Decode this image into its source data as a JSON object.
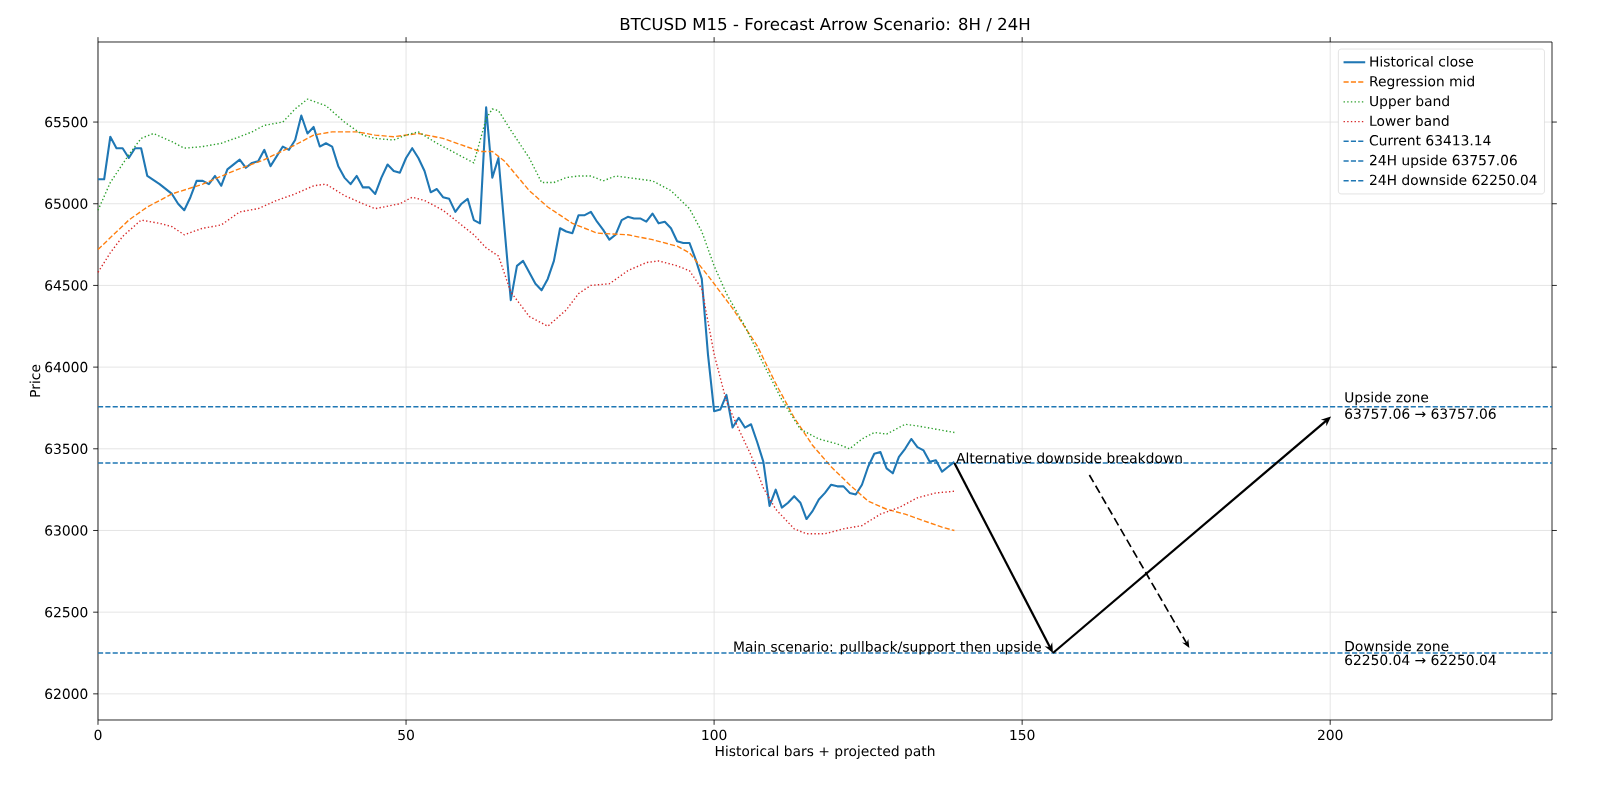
{
  "chart_data": {
    "type": "line",
    "title": "BTCUSD M15 - Forecast Arrow Scenario: 8H / 24H",
    "xlabel": "Historical bars + projected path",
    "ylabel": "Price",
    "xlim": [
      0,
      236
    ],
    "ylim": [
      61840,
      65990
    ],
    "xticks": [
      0,
      50,
      100,
      150,
      200
    ],
    "yticks": [
      62000,
      62500,
      63000,
      63500,
      64000,
      64500,
      65000,
      65500
    ],
    "grid": true,
    "legend": "top right",
    "series": [
      {
        "name": "Historical close",
        "color": "#1f77b4",
        "line_style": "solid",
        "x": [
          0,
          1,
          2,
          3,
          4,
          5,
          6,
          7,
          8,
          10,
          12,
          13,
          14,
          15,
          16,
          17,
          18,
          19,
          20,
          21,
          23,
          24,
          25,
          26,
          27,
          28,
          30,
          31,
          32,
          33,
          34,
          35,
          36,
          37,
          38,
          39,
          40,
          41,
          42,
          43,
          44,
          45,
          46,
          47,
          48,
          49,
          50,
          51,
          52,
          53,
          54,
          55,
          56,
          57,
          58,
          59,
          60,
          61,
          62,
          63,
          64,
          65,
          66,
          67,
          68,
          69,
          71,
          72,
          73,
          74,
          75,
          76,
          77,
          78,
          79,
          80,
          81,
          82,
          83,
          84,
          85,
          86,
          87,
          88,
          89,
          90,
          91,
          92,
          93,
          94,
          95,
          96,
          97,
          98,
          99,
          100,
          101,
          102,
          103,
          104,
          105,
          106,
          107,
          108,
          109,
          110,
          111,
          112,
          113,
          114,
          115,
          116,
          117,
          118,
          119,
          120,
          121,
          122,
          123,
          124,
          125,
          126,
          127,
          128,
          129,
          130,
          131,
          132,
          133,
          134,
          135,
          136,
          137,
          138,
          139
        ],
        "values": [
          65150,
          65150,
          65410,
          65340,
          65340,
          65280,
          65340,
          65340,
          65170,
          65120,
          65060,
          65000,
          64960,
          65040,
          65140,
          65140,
          65120,
          65170,
          65110,
          65210,
          65270,
          65220,
          65250,
          65260,
          65330,
          65230,
          65350,
          65330,
          65390,
          65540,
          65430,
          65470,
          65350,
          65370,
          65350,
          65230,
          65160,
          65120,
          65170,
          65100,
          65100,
          65060,
          65160,
          65240,
          65200,
          65190,
          65280,
          65340,
          65280,
          65200,
          65070,
          65090,
          65040,
          65030,
          64950,
          65000,
          65030,
          64900,
          64880,
          65590,
          65160,
          65280,
          64840,
          64410,
          64620,
          64650,
          64510,
          64470,
          64540,
          64650,
          64850,
          64830,
          64820,
          64930,
          64930,
          64950,
          64890,
          64840,
          64780,
          64810,
          64900,
          64920,
          64910,
          64910,
          64890,
          64940,
          64880,
          64890,
          64850,
          64770,
          64760,
          64760,
          64660,
          64540,
          64080,
          63730,
          63740,
          63830,
          63630,
          63690,
          63630,
          63650,
          63540,
          63420,
          63150,
          63250,
          63140,
          63170,
          63210,
          63170,
          63070,
          63120,
          63190,
          63230,
          63280,
          63270,
          63270,
          63230,
          63220,
          63280,
          63390,
          63470,
          63480,
          63380,
          63350,
          63450,
          63500,
          63560,
          63510,
          63490,
          63420,
          63430,
          63360,
          63390,
          63420
        ]
      },
      {
        "name": "Regression mid",
        "color": "#ff7f0e",
        "line_style": "dashed",
        "x": [
          0,
          5,
          8,
          12,
          17,
          22,
          27,
          32,
          35,
          38,
          42,
          45,
          48,
          52,
          56,
          59,
          62,
          64,
          66,
          70,
          73,
          77,
          81,
          86,
          90,
          94,
          96,
          99,
          103,
          107,
          110,
          113,
          116,
          119,
          122,
          125,
          128,
          131,
          134,
          137,
          139
        ],
        "values": [
          64720,
          64900,
          64980,
          65060,
          65120,
          65200,
          65270,
          65360,
          65420,
          65440,
          65440,
          65420,
          65410,
          65430,
          65400,
          65360,
          65320,
          65320,
          65260,
          65080,
          64980,
          64880,
          64820,
          64810,
          64780,
          64740,
          64700,
          64560,
          64360,
          64130,
          63900,
          63690,
          63520,
          63390,
          63280,
          63180,
          63130,
          63100,
          63060,
          63020,
          63000
        ]
      },
      {
        "name": "Upper band",
        "color": "#2ca02c",
        "line_style": "dotted",
        "x": [
          0,
          2,
          5,
          7,
          9,
          12,
          14,
          17,
          20,
          23,
          25,
          27,
          30,
          32,
          34,
          37,
          40,
          43,
          45,
          48,
          50,
          52,
          55,
          58,
          61,
          63,
          64,
          65,
          67,
          70,
          72,
          74,
          76,
          78,
          80,
          82,
          84,
          86,
          88,
          90,
          93,
          96,
          98,
          100,
          102,
          105,
          108,
          111,
          114,
          117,
          120,
          122,
          124,
          126,
          128,
          131,
          133,
          136,
          139
        ],
        "values": [
          64960,
          65130,
          65300,
          65400,
          65430,
          65380,
          65340,
          65350,
          65370,
          65410,
          65440,
          65480,
          65500,
          65580,
          65640,
          65600,
          65500,
          65420,
          65400,
          65390,
          65420,
          65440,
          65370,
          65310,
          65250,
          65520,
          65580,
          65570,
          65450,
          65280,
          65130,
          65130,
          65160,
          65170,
          65170,
          65140,
          65170,
          65160,
          65150,
          65140,
          65080,
          64970,
          64830,
          64620,
          64450,
          64250,
          64020,
          63800,
          63620,
          63560,
          63530,
          63500,
          63560,
          63600,
          63590,
          63650,
          63640,
          63620,
          63600
        ]
      },
      {
        "name": "Lower band",
        "color": "#d62728",
        "line_style": "dotted",
        "x": [
          0,
          2,
          4,
          7,
          10,
          12,
          14,
          17,
          20,
          23,
          26,
          29,
          32,
          35,
          37,
          40,
          43,
          45,
          49,
          51,
          53,
          56,
          59,
          61,
          63,
          65,
          67,
          70,
          73,
          76,
          78,
          80,
          83,
          86,
          89,
          91,
          94,
          96,
          98,
          100,
          102,
          104,
          106,
          108,
          110,
          113,
          115,
          118,
          121,
          124,
          127,
          130,
          133,
          136,
          139
        ],
        "values": [
          64580,
          64700,
          64800,
          64900,
          64880,
          64860,
          64810,
          64850,
          64870,
          64950,
          64970,
          65020,
          65060,
          65110,
          65120,
          65050,
          65000,
          64970,
          65000,
          65040,
          65020,
          64960,
          64870,
          64810,
          64730,
          64680,
          64460,
          64310,
          64250,
          64350,
          64450,
          64500,
          64510,
          64590,
          64640,
          64650,
          64620,
          64590,
          64480,
          64080,
          63790,
          63620,
          63460,
          63260,
          63130,
          63010,
          62980,
          62980,
          63010,
          63030,
          63100,
          63140,
          63200,
          63230,
          63240
        ]
      }
    ],
    "ref_lines": [
      {
        "axis": "y",
        "value": 63413.14,
        "label": "Current 63413.14",
        "color": "#1f77b4",
        "line_style": "dashed"
      },
      {
        "axis": "y",
        "value": 63757.06,
        "label": "24H upside 63757.06",
        "color": "#1f77b4",
        "line_style": "dashed"
      },
      {
        "axis": "y",
        "value": 62250.04,
        "label": "24H downside 62250.04",
        "color": "#1f77b4",
        "line_style": "dashed"
      }
    ],
    "annotations": [
      {
        "text": "Alternative downside breakdown",
        "x": 139,
        "y": 63413.14
      },
      {
        "text": "Main scenario: pullback/support then upside",
        "x": 155,
        "y": 62250.04
      },
      {
        "text": "Upside zone",
        "x": 202,
        "y": 63757.06
      },
      {
        "text": "63757.06 → 63757.06",
        "x": 202,
        "y": 63757.06
      },
      {
        "text": "Downside zone",
        "x": 202,
        "y": 62250.04
      },
      {
        "text": "62250.04 → 62250.04",
        "x": 202,
        "y": 62250.04
      }
    ]
  }
}
